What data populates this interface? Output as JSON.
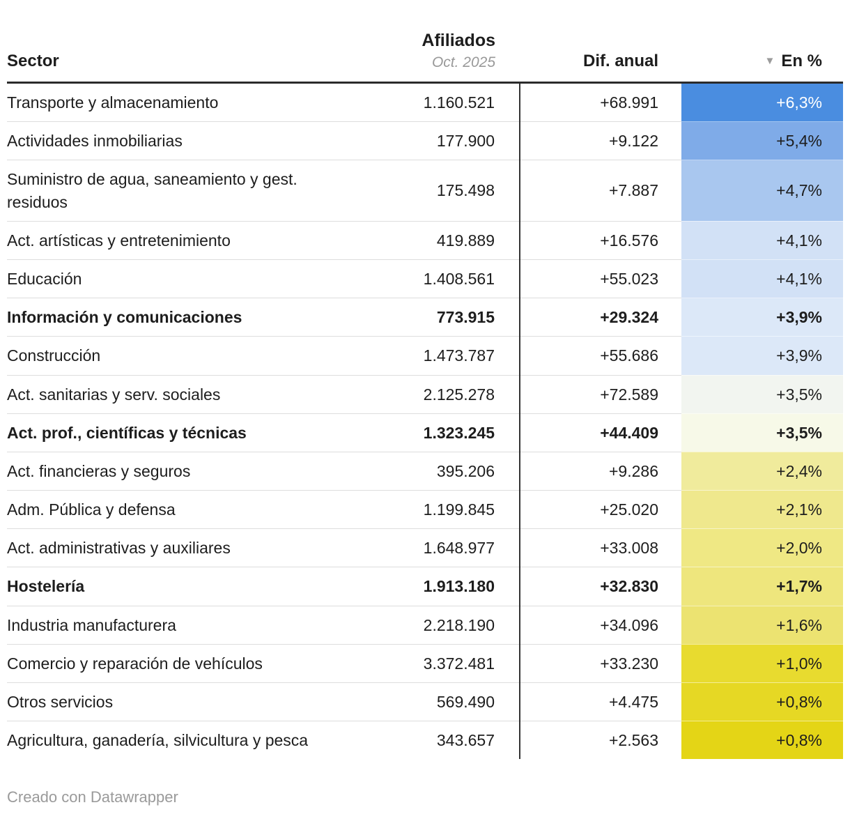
{
  "table_header": {
    "sector_label": "Sector",
    "afiliados_label": "Afiliados",
    "afiliados_sublabel": "Oct. 2025",
    "dif_label": "Dif. anual",
    "pct_label": "En %",
    "sort_icon": "▼"
  },
  "footer": {
    "credit_text": "Creado con Datawrapper"
  },
  "colors": {
    "header_rule": "#2b2b2b",
    "row_divider": "#dddddd",
    "column_divider": "#333333",
    "sub_header_text": "#999999",
    "footer_text": "#9a9a9a",
    "body_text": "#1d1d1d",
    "heatmap_top_blue": "#4a8de0",
    "heatmap_bottom_yellow": "#e4d516"
  },
  "chart_data": {
    "type": "table",
    "columns": [
      "Sector",
      "Afiliados Oct. 2025",
      "Dif. anual",
      "En %"
    ],
    "sorted_by": "En %",
    "sort_direction": "descending",
    "rows": [
      {
        "sector": "Transporte y almacenamiento",
        "afiliados": "1.160.521",
        "dif_anual": "+68.991",
        "pct": "+6,3%",
        "bold": false,
        "bg": "#4a8de0",
        "fg": "#ffffff"
      },
      {
        "sector": "Actividades inmobiliarias",
        "afiliados": "177.900",
        "dif_anual": "+9.122",
        "pct": "+5,4%",
        "bold": false,
        "bg": "#7fabe8",
        "fg": "#1d1d1d"
      },
      {
        "sector": "Suministro de agua, saneamiento y gest. residuos",
        "afiliados": "175.498",
        "dif_anual": "+7.887",
        "pct": "+4,7%",
        "bold": false,
        "bg": "#a9c7ef",
        "fg": "#1d1d1d"
      },
      {
        "sector": "Act. artísticas y entretenimiento",
        "afiliados": "419.889",
        "dif_anual": "+16.576",
        "pct": "+4,1%",
        "bold": false,
        "bg": "#d2e1f6",
        "fg": "#1d1d1d"
      },
      {
        "sector": "Educación",
        "afiliados": "1.408.561",
        "dif_anual": "+55.023",
        "pct": "+4,1%",
        "bold": false,
        "bg": "#d2e1f6",
        "fg": "#1d1d1d"
      },
      {
        "sector": "Información y comunicaciones",
        "afiliados": "773.915",
        "dif_anual": "+29.324",
        "pct": "+3,9%",
        "bold": true,
        "bg": "#dce8f8",
        "fg": "#1d1d1d"
      },
      {
        "sector": "Construcción",
        "afiliados": "1.473.787",
        "dif_anual": "+55.686",
        "pct": "+3,9%",
        "bold": false,
        "bg": "#dce8f8",
        "fg": "#1d1d1d"
      },
      {
        "sector": "Act. sanitarias y serv. sociales",
        "afiliados": "2.125.278",
        "dif_anual": "+72.589",
        "pct": "+3,5%",
        "bold": false,
        "bg": "#f2f5f0",
        "fg": "#1d1d1d"
      },
      {
        "sector": "Act. prof., científicas y técnicas",
        "afiliados": "1.323.245",
        "dif_anual": "+44.409",
        "pct": "+3,5%",
        "bold": true,
        "bg": "#f7f9e8",
        "fg": "#1d1d1d"
      },
      {
        "sector": "Act. financieras y seguros",
        "afiliados": "395.206",
        "dif_anual": "+9.286",
        "pct": "+2,4%",
        "bold": false,
        "bg": "#f0eb9c",
        "fg": "#1d1d1d"
      },
      {
        "sector": "Adm. Pública y defensa",
        "afiliados": "1.199.845",
        "dif_anual": "+25.020",
        "pct": "+2,1%",
        "bold": false,
        "bg": "#efe88d",
        "fg": "#1d1d1d"
      },
      {
        "sector": "Act. administrativas y auxiliares",
        "afiliados": "1.648.977",
        "dif_anual": "+33.008",
        "pct": "+2,0%",
        "bold": false,
        "bg": "#efe884",
        "fg": "#1d1d1d"
      },
      {
        "sector": "Hostelería",
        "afiliados": "1.913.180",
        "dif_anual": "+32.830",
        "pct": "+1,7%",
        "bold": true,
        "bg": "#eee67d",
        "fg": "#1d1d1d"
      },
      {
        "sector": "Industria manufacturera",
        "afiliados": "2.218.190",
        "dif_anual": "+34.096",
        "pct": "+1,6%",
        "bold": false,
        "bg": "#ece371",
        "fg": "#1d1d1d"
      },
      {
        "sector": "Comercio y reparación de vehículos",
        "afiliados": "3.372.481",
        "dif_anual": "+33.230",
        "pct": "+1,0%",
        "bold": false,
        "bg": "#e8db2f",
        "fg": "#1d1d1d"
      },
      {
        "sector": "Otros servicios",
        "afiliados": "569.490",
        "dif_anual": "+4.475",
        "pct": "+0,8%",
        "bold": false,
        "bg": "#e6d824",
        "fg": "#1d1d1d"
      },
      {
        "sector": "Agricultura, ganadería, silvicultura y pesca",
        "afiliados": "343.657",
        "dif_anual": "+2.563",
        "pct": "+0,8%",
        "bold": false,
        "bg": "#e4d516",
        "fg": "#1d1d1d"
      }
    ]
  }
}
